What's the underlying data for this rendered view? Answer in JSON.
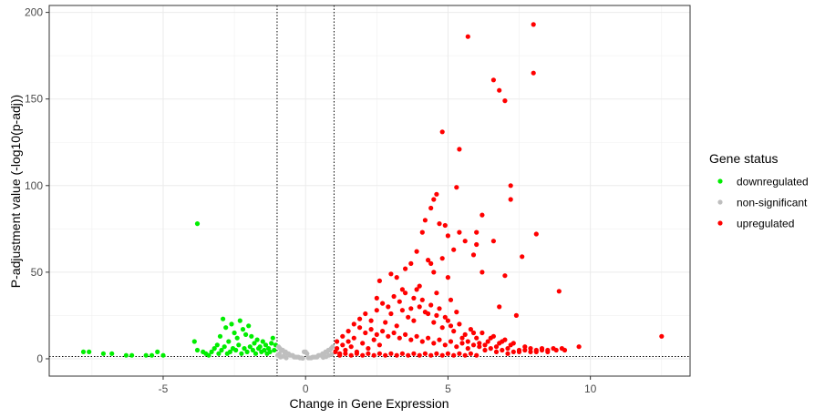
{
  "chart_data": {
    "type": "scatter",
    "title": "",
    "xlabel": "Change in Gene Expression",
    "ylabel": "P-adjustment value (-log10(p-adj))",
    "xlim": [
      -9,
      13.5
    ],
    "ylim": [
      -10,
      204
    ],
    "x_ticks": [
      -5,
      0,
      5,
      10
    ],
    "y_ticks": [
      0,
      50,
      100,
      150,
      200
    ],
    "x_tick_labels": [
      "-5",
      "0",
      "5",
      "10"
    ],
    "y_tick_labels": [
      "0",
      "50",
      "100",
      "150",
      "200"
    ],
    "grid": true,
    "thresholds": {
      "x": [
        -1,
        1
      ],
      "y": 1.3
    },
    "legend": {
      "title": "Gene status",
      "position": "right",
      "entries": [
        {
          "name": "downregulated",
          "color": "#00ee00"
        },
        {
          "name": "non-significant",
          "color": "#bebebe"
        },
        {
          "name": "upregulated",
          "color": "#ff0000"
        }
      ]
    },
    "series": [
      {
        "name": "downregulated",
        "color": "#00ee00",
        "points": [
          [
            -7.8,
            4
          ],
          [
            -7.6,
            4
          ],
          [
            -7.1,
            3
          ],
          [
            -6.8,
            3
          ],
          [
            -6.3,
            2
          ],
          [
            -6.1,
            2
          ],
          [
            -5.6,
            2
          ],
          [
            -5.4,
            2
          ],
          [
            -5.2,
            4
          ],
          [
            -5.0,
            2
          ],
          [
            -3.8,
            78
          ],
          [
            -3.9,
            10
          ],
          [
            -3.8,
            5
          ],
          [
            -3.5,
            3
          ],
          [
            -3.3,
            4
          ],
          [
            -3.1,
            8
          ],
          [
            -3.0,
            13
          ],
          [
            -2.9,
            23
          ],
          [
            -2.8,
            18
          ],
          [
            -2.7,
            10
          ],
          [
            -2.6,
            20
          ],
          [
            -2.5,
            15
          ],
          [
            -2.4,
            12
          ],
          [
            -2.3,
            22
          ],
          [
            -2.2,
            17
          ],
          [
            -2.1,
            14
          ],
          [
            -2.0,
            19
          ],
          [
            -1.9,
            13
          ],
          [
            -1.8,
            9
          ],
          [
            -1.7,
            11
          ],
          [
            -1.6,
            7
          ],
          [
            -1.5,
            10
          ],
          [
            -1.4,
            8
          ],
          [
            -1.3,
            6
          ],
          [
            -1.2,
            9
          ],
          [
            -1.1,
            5
          ],
          [
            -1.05,
            8
          ],
          [
            -1.15,
            12
          ],
          [
            -1.25,
            4
          ],
          [
            -1.35,
            3
          ],
          [
            -1.45,
            5
          ],
          [
            -1.55,
            4
          ],
          [
            -1.65,
            6
          ],
          [
            -1.75,
            3
          ],
          [
            -1.85,
            5
          ],
          [
            -1.95,
            7
          ],
          [
            -2.05,
            4
          ],
          [
            -2.15,
            6
          ],
          [
            -2.25,
            3
          ],
          [
            -2.35,
            8
          ],
          [
            -2.45,
            5
          ],
          [
            -2.55,
            6
          ],
          [
            -2.65,
            4
          ],
          [
            -2.75,
            3
          ],
          [
            -2.85,
            7
          ],
          [
            -2.95,
            5
          ],
          [
            -3.05,
            3
          ],
          [
            -3.2,
            6
          ],
          [
            -3.4,
            2
          ],
          [
            -3.6,
            4
          ]
        ]
      },
      {
        "name": "non-significant",
        "color": "#bebebe",
        "points": [
          [
            -0.95,
            7
          ],
          [
            -0.9,
            6
          ],
          [
            -0.85,
            5
          ],
          [
            -0.8,
            5
          ],
          [
            -0.75,
            4
          ],
          [
            -0.7,
            4
          ],
          [
            -0.65,
            3
          ],
          [
            -0.6,
            3
          ],
          [
            -0.55,
            2
          ],
          [
            -0.5,
            2
          ],
          [
            -0.45,
            2
          ],
          [
            -0.4,
            1
          ],
          [
            -0.35,
            1
          ],
          [
            -0.3,
            1
          ],
          [
            -0.25,
            1
          ],
          [
            -0.2,
            0.5
          ],
          [
            -0.15,
            0.5
          ],
          [
            -0.1,
            0.3
          ],
          [
            -0.05,
            4
          ],
          [
            0.0,
            4
          ],
          [
            0.05,
            3
          ],
          [
            0.1,
            0.5
          ],
          [
            0.15,
            0.5
          ],
          [
            0.2,
            0.5
          ],
          [
            0.25,
            1
          ],
          [
            0.3,
            1
          ],
          [
            0.35,
            1
          ],
          [
            0.4,
            1
          ],
          [
            0.45,
            2
          ],
          [
            0.5,
            2
          ],
          [
            0.55,
            2
          ],
          [
            0.6,
            3
          ],
          [
            0.65,
            3
          ],
          [
            0.7,
            4
          ],
          [
            0.75,
            4
          ],
          [
            0.8,
            5
          ],
          [
            0.85,
            5
          ],
          [
            0.9,
            6
          ],
          [
            0.95,
            7
          ],
          [
            -0.98,
            2
          ],
          [
            -0.88,
            1
          ],
          [
            -0.78,
            1.5
          ],
          [
            -0.68,
            0.5
          ],
          [
            0.62,
            0.8
          ],
          [
            0.72,
            1.2
          ],
          [
            0.82,
            2
          ],
          [
            0.92,
            2.5
          ],
          [
            -0.92,
            3
          ]
        ]
      },
      {
        "name": "upregulated",
        "color": "#ff0000",
        "points": [
          [
            8.0,
            193
          ],
          [
            5.7,
            186
          ],
          [
            8.0,
            165
          ],
          [
            6.6,
            161
          ],
          [
            6.8,
            155
          ],
          [
            7.0,
            149
          ],
          [
            4.8,
            131
          ],
          [
            5.4,
            121
          ],
          [
            7.2,
            100
          ],
          [
            7.2,
            92
          ],
          [
            4.6,
            95
          ],
          [
            4.5,
            92
          ],
          [
            5.3,
            99
          ],
          [
            4.4,
            87
          ],
          [
            6.2,
            83
          ],
          [
            4.7,
            78
          ],
          [
            4.2,
            80
          ],
          [
            4.9,
            77
          ],
          [
            6.0,
            73
          ],
          [
            8.1,
            72
          ],
          [
            5.0,
            71
          ],
          [
            4.1,
            73
          ],
          [
            5.4,
            73
          ],
          [
            6.6,
            68
          ],
          [
            6.0,
            66
          ],
          [
            5.6,
            68
          ],
          [
            5.2,
            63
          ],
          [
            4.8,
            58
          ],
          [
            3.9,
            62
          ],
          [
            4.3,
            57
          ],
          [
            5.9,
            60
          ],
          [
            7.6,
            59
          ],
          [
            3.7,
            55
          ],
          [
            3.5,
            52
          ],
          [
            4.4,
            55
          ],
          [
            4.5,
            50
          ],
          [
            5.0,
            47
          ],
          [
            6.2,
            50
          ],
          [
            7.0,
            48
          ],
          [
            3.0,
            49
          ],
          [
            3.2,
            47
          ],
          [
            2.6,
            45
          ],
          [
            8.9,
            39
          ],
          [
            3.4,
            40
          ],
          [
            4.0,
            42
          ],
          [
            4.6,
            38
          ],
          [
            2.5,
            35
          ],
          [
            3.8,
            35
          ],
          [
            5.1,
            34
          ],
          [
            6.8,
            30
          ],
          [
            7.4,
            25
          ],
          [
            12.5,
            13
          ],
          [
            9.6,
            7
          ],
          [
            9.0,
            6
          ],
          [
            8.7,
            6
          ],
          [
            8.5,
            5
          ],
          [
            8.3,
            6
          ],
          [
            8.1,
            5
          ],
          [
            7.9,
            4
          ],
          [
            7.7,
            5
          ],
          [
            7.5,
            4
          ],
          [
            7.3,
            4
          ],
          [
            7.1,
            3
          ],
          [
            6.9,
            5
          ],
          [
            6.7,
            4
          ],
          [
            6.5,
            6
          ],
          [
            6.3,
            5
          ],
          [
            6.1,
            7
          ],
          [
            5.9,
            8
          ],
          [
            5.7,
            6
          ],
          [
            5.5,
            9
          ],
          [
            5.3,
            7
          ],
          [
            5.1,
            10
          ],
          [
            4.9,
            8
          ],
          [
            4.7,
            11
          ],
          [
            4.5,
            9
          ],
          [
            4.3,
            12
          ],
          [
            4.1,
            10
          ],
          [
            3.9,
            13
          ],
          [
            3.7,
            11
          ],
          [
            3.5,
            14
          ],
          [
            3.3,
            12
          ],
          [
            3.1,
            15
          ],
          [
            2.9,
            13
          ],
          [
            2.7,
            16
          ],
          [
            2.5,
            14
          ],
          [
            2.3,
            17
          ],
          [
            2.1,
            15
          ],
          [
            1.9,
            18
          ],
          [
            1.7,
            12
          ],
          [
            1.5,
            10
          ],
          [
            1.3,
            8
          ],
          [
            1.1,
            6
          ],
          [
            1.05,
            4
          ],
          [
            1.2,
            3
          ],
          [
            1.4,
            5
          ],
          [
            1.6,
            7
          ],
          [
            1.8,
            4
          ],
          [
            2.0,
            9
          ],
          [
            2.2,
            6
          ],
          [
            2.4,
            11
          ],
          [
            2.6,
            8
          ],
          [
            2.8,
            21
          ],
          [
            3.0,
            26
          ],
          [
            3.2,
            19
          ],
          [
            3.4,
            28
          ],
          [
            3.6,
            24
          ],
          [
            3.8,
            22
          ],
          [
            4.0,
            30
          ],
          [
            4.2,
            27
          ],
          [
            4.4,
            31
          ],
          [
            4.6,
            25
          ],
          [
            4.8,
            18
          ],
          [
            5.0,
            22
          ],
          [
            5.2,
            16
          ],
          [
            5.4,
            20
          ],
          [
            5.6,
            14
          ],
          [
            5.8,
            17
          ],
          [
            6.0,
            12
          ],
          [
            6.2,
            15
          ],
          [
            6.4,
            10
          ],
          [
            6.6,
            13
          ],
          [
            6.8,
            9
          ],
          [
            7.0,
            11
          ],
          [
            7.2,
            8
          ],
          [
            1.1,
            10
          ],
          [
            1.3,
            13
          ],
          [
            1.5,
            16
          ],
          [
            1.7,
            20
          ],
          [
            1.9,
            23
          ],
          [
            2.1,
            26
          ],
          [
            2.3,
            22
          ],
          [
            2.5,
            28
          ],
          [
            2.7,
            32
          ],
          [
            2.9,
            30
          ],
          [
            3.1,
            36
          ],
          [
            3.3,
            33
          ],
          [
            3.5,
            38
          ],
          [
            3.7,
            29
          ],
          [
            3.9,
            40
          ],
          [
            4.1,
            34
          ],
          [
            4.3,
            26
          ],
          [
            4.5,
            21
          ],
          [
            4.7,
            29
          ],
          [
            4.9,
            24
          ],
          [
            5.1,
            19
          ],
          [
            5.3,
            27
          ],
          [
            5.5,
            12
          ],
          [
            5.7,
            10
          ],
          [
            5.9,
            15
          ],
          [
            6.1,
            9
          ],
          [
            6.3,
            8
          ],
          [
            6.5,
            12
          ],
          [
            6.7,
            7
          ],
          [
            6.9,
            10
          ],
          [
            7.1,
            6
          ],
          [
            7.3,
            9
          ],
          [
            7.5,
            5
          ],
          [
            7.7,
            7
          ],
          [
            7.9,
            6
          ],
          [
            8.1,
            4
          ],
          [
            8.3,
            5
          ],
          [
            8.5,
            4
          ],
          [
            8.8,
            5
          ],
          [
            9.1,
            5
          ],
          [
            1.2,
            2
          ],
          [
            1.4,
            3
          ],
          [
            1.6,
            2
          ],
          [
            1.8,
            3
          ],
          [
            2.0,
            2
          ],
          [
            2.2,
            3
          ],
          [
            2.4,
            2
          ],
          [
            2.6,
            3
          ],
          [
            2.8,
            2
          ],
          [
            3.0,
            3
          ],
          [
            3.2,
            2
          ],
          [
            3.4,
            3
          ],
          [
            3.6,
            2
          ],
          [
            3.8,
            3
          ],
          [
            4.0,
            2
          ],
          [
            4.2,
            3
          ],
          [
            4.4,
            2
          ],
          [
            4.6,
            3
          ],
          [
            4.8,
            2
          ],
          [
            5.0,
            3
          ],
          [
            5.2,
            2
          ],
          [
            5.4,
            3
          ],
          [
            5.6,
            2
          ],
          [
            5.8,
            3
          ],
          [
            6.0,
            2
          ]
        ]
      }
    ]
  }
}
